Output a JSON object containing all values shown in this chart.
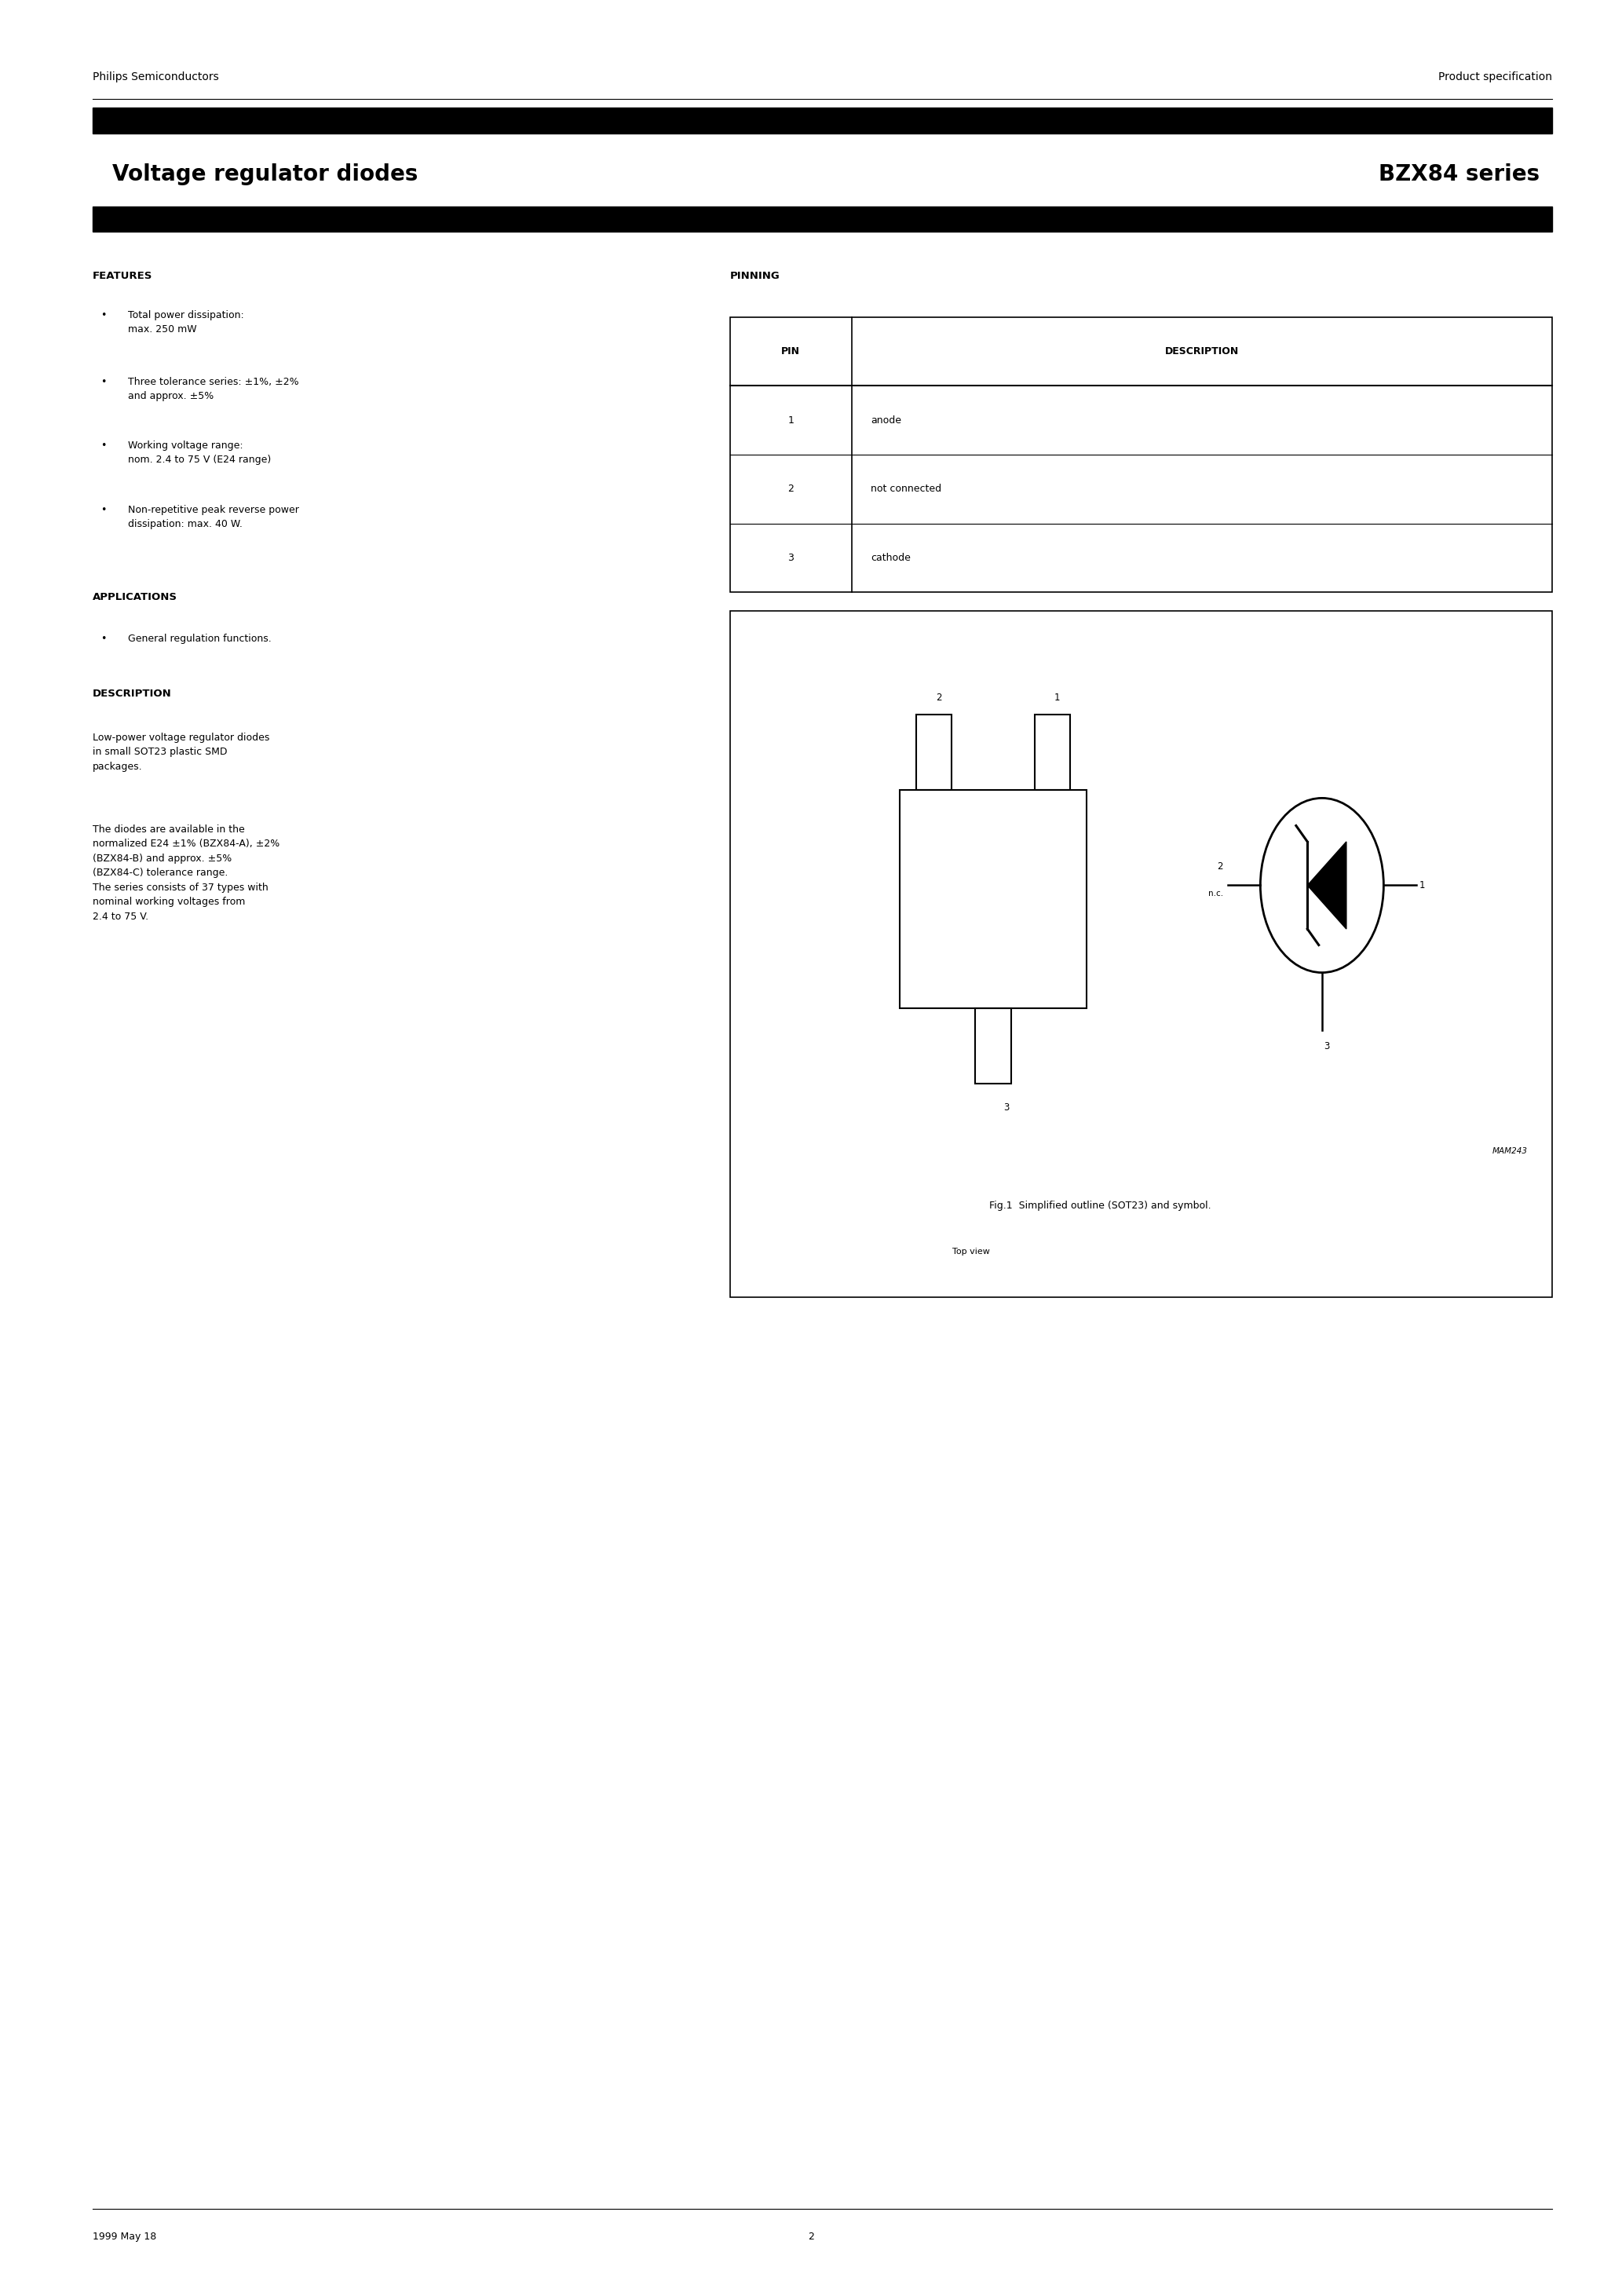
{
  "page_width": 20.66,
  "page_height": 29.24,
  "bg_color": "#ffffff",
  "text_color": "#000000",
  "header_left": "Philips Semiconductors",
  "header_right": "Product specification",
  "title_left": "Voltage regulator diodes",
  "title_right": "BZX84 series",
  "black_bar_color": "#000000",
  "features_title": "FEATURES",
  "features_bullets": [
    "Total power dissipation:\nmax. 250 mW",
    "Three tolerance series: ±1%, ±2%\nand approx. ±5%",
    "Working voltage range:\nnom. 2.4 to 75 V (E24 range)",
    "Non-repetitive peak reverse power\ndissipation: max. 40 W."
  ],
  "applications_title": "APPLICATIONS",
  "applications_bullets": [
    "General regulation functions."
  ],
  "description_title": "DESCRIPTION",
  "description_text1": "Low-power voltage regulator diodes\nin small SOT23 plastic SMD\npackages.",
  "description_text2": "The diodes are available in the\nnormalized E24 ±1% (BZX84-A), ±2%\n(BZX84-B) and approx. ±5%\n(BZX84-C) tolerance range.\nThe series consists of 37 types with\nnominal working voltages from\n2.4 to 75 V.",
  "pinning_title": "PINNING",
  "pin_headers": [
    "PIN",
    "DESCRIPTION"
  ],
  "pin_data": [
    [
      "1",
      "anode"
    ],
    [
      "2",
      "not connected"
    ],
    [
      "3",
      "cathode"
    ]
  ],
  "fig_caption": "Fig.1  Simplified outline (SOT23) and symbol.",
  "footer_left": "1999 May 18",
  "footer_center": "2",
  "lm": 0.057,
  "rm": 0.957,
  "col_mid": 0.44
}
